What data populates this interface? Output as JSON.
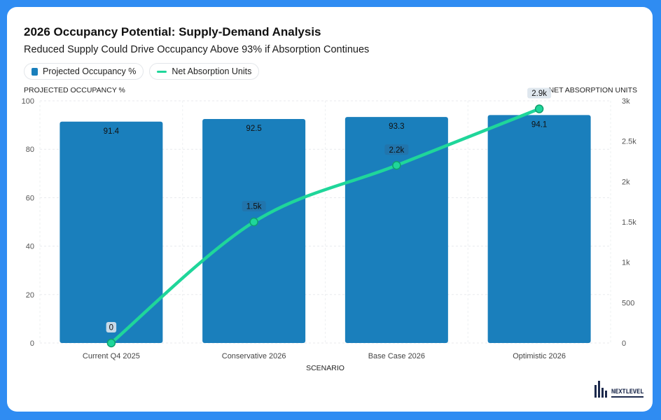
{
  "header": {
    "title": "2026 Occupancy Potential: Supply-Demand Analysis",
    "subtitle": "Reduced Supply Could Drive Occupancy Above 93% if Absorption Continues"
  },
  "legend": [
    {
      "label": "Projected Occupancy %",
      "color": "#1a7fbc",
      "kind": "bar"
    },
    {
      "label": "Net Absorption Units",
      "color": "#1fd69a",
      "kind": "line"
    }
  ],
  "logo": {
    "text": "NEXTLEVEL",
    "icon": "building-bars-icon"
  },
  "chart_data": {
    "type": "bar",
    "categories": [
      "Current Q4 2025",
      "Conservative 2026",
      "Base Case 2026",
      "Optimistic 2026"
    ],
    "xlabel": "SCENARIO",
    "y_left": {
      "label": "PROJECTED OCCUPANCY %",
      "range": [
        0,
        100
      ],
      "ticks": [
        0,
        20,
        40,
        60,
        80,
        100
      ],
      "tick_labels": [
        "0",
        "20",
        "40",
        "60",
        "80",
        "100"
      ]
    },
    "y_right": {
      "label": "NET ABSORPTION UNITS",
      "range": [
        0,
        3000
      ],
      "ticks": [
        0,
        500,
        1000,
        1500,
        2000,
        2500,
        3000
      ],
      "tick_labels": [
        "0",
        "500",
        "1k",
        "1.5k",
        "2k",
        "2.5k",
        "3k"
      ]
    },
    "series": [
      {
        "name": "Projected Occupancy %",
        "type": "bar",
        "axis": "left",
        "color": "#1a7fbc",
        "values": [
          91.4,
          92.5,
          93.3,
          94.1
        ],
        "labels": [
          "91.4",
          "92.5",
          "93.3",
          "94.1"
        ]
      },
      {
        "name": "Net Absorption Units",
        "type": "line",
        "axis": "right",
        "color": "#1fd69a",
        "values": [
          0,
          1500,
          2200,
          2900
        ],
        "labels": [
          "0",
          "1.5k",
          "2.2k",
          "2.9k"
        ]
      }
    ],
    "grid": true,
    "legend_position": "top-left"
  }
}
